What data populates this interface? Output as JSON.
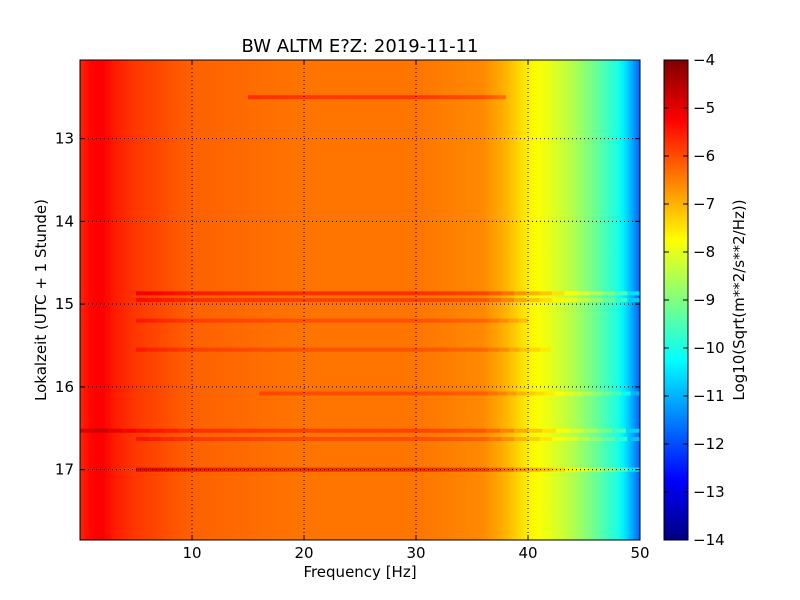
{
  "chart_data": {
    "type": "heatmap",
    "title": "BW ALTM E?Z: 2019-11-11",
    "xlabel": "Frequency [Hz]",
    "ylabel": "Lokalzeit (UTC + 1 Stunde)",
    "colorbar_label": "Log10(Sqrt(m**2/s**2/Hz))",
    "xlim": [
      0,
      50
    ],
    "ylim": [
      12.05,
      17.85
    ],
    "y_inverted": true,
    "grid": true,
    "colormap": "jet",
    "clim": [
      -14,
      -4
    ],
    "x_ticks": [
      {
        "value": 10,
        "label": "10"
      },
      {
        "value": 20,
        "label": "20"
      },
      {
        "value": 30,
        "label": "30"
      },
      {
        "value": 40,
        "label": "40"
      },
      {
        "value": 50,
        "label": "50"
      }
    ],
    "y_ticks": [
      {
        "value": 13,
        "label": "13"
      },
      {
        "value": 14,
        "label": "14"
      },
      {
        "value": 15,
        "label": "15"
      },
      {
        "value": 16,
        "label": "16"
      },
      {
        "value": 17,
        "label": "17"
      }
    ],
    "colorbar_ticks": [
      {
        "value": -4,
        "label": "−4"
      },
      {
        "value": -5,
        "label": "−5"
      },
      {
        "value": -6,
        "label": "−6"
      },
      {
        "value": -7,
        "label": "−7"
      },
      {
        "value": -8,
        "label": "−8"
      },
      {
        "value": -9,
        "label": "−9"
      },
      {
        "value": -10,
        "label": "−10"
      },
      {
        "value": -11,
        "label": "−11"
      },
      {
        "value": -12,
        "label": "−12"
      },
      {
        "value": -13,
        "label": "−13"
      },
      {
        "value": -14,
        "label": "−14"
      }
    ],
    "spectrum_profile": [
      {
        "freq": 0,
        "value": -5.6
      },
      {
        "freq": 1,
        "value": -5.3
      },
      {
        "freq": 2,
        "value": -5.2
      },
      {
        "freq": 3,
        "value": -5.5
      },
      {
        "freq": 5,
        "value": -5.8
      },
      {
        "freq": 10,
        "value": -6.2
      },
      {
        "freq": 20,
        "value": -6.4
      },
      {
        "freq": 30,
        "value": -6.4
      },
      {
        "freq": 36,
        "value": -6.6
      },
      {
        "freq": 38,
        "value": -7.0
      },
      {
        "freq": 40,
        "value": -7.6
      },
      {
        "freq": 42,
        "value": -8.0
      },
      {
        "freq": 44,
        "value": -8.5
      },
      {
        "freq": 46,
        "value": -9.2
      },
      {
        "freq": 48,
        "value": -10.0
      },
      {
        "freq": 49,
        "value": -10.8
      },
      {
        "freq": 50,
        "value": -11.8
      }
    ],
    "bands": [
      {
        "time": 12.5,
        "f_start": 15,
        "f_end": 38,
        "delta": 0.6
      },
      {
        "time": 14.87,
        "f_start": 5,
        "f_end": 50,
        "delta": 0.7
      },
      {
        "time": 14.95,
        "f_start": 5,
        "f_end": 50,
        "delta": 0.5
      },
      {
        "time": 15.2,
        "f_start": 5,
        "f_end": 40,
        "delta": 0.35
      },
      {
        "time": 15.55,
        "f_start": 5,
        "f_end": 42,
        "delta": 0.35
      },
      {
        "time": 16.08,
        "f_start": 16,
        "f_end": 50,
        "delta": 0.4
      },
      {
        "time": 16.53,
        "f_start": 0,
        "f_end": 50,
        "delta": 0.5
      },
      {
        "time": 16.63,
        "f_start": 5,
        "f_end": 50,
        "delta": 0.4
      },
      {
        "time": 17.0,
        "f_start": 5,
        "f_end": 50,
        "delta": 0.8
      }
    ]
  }
}
